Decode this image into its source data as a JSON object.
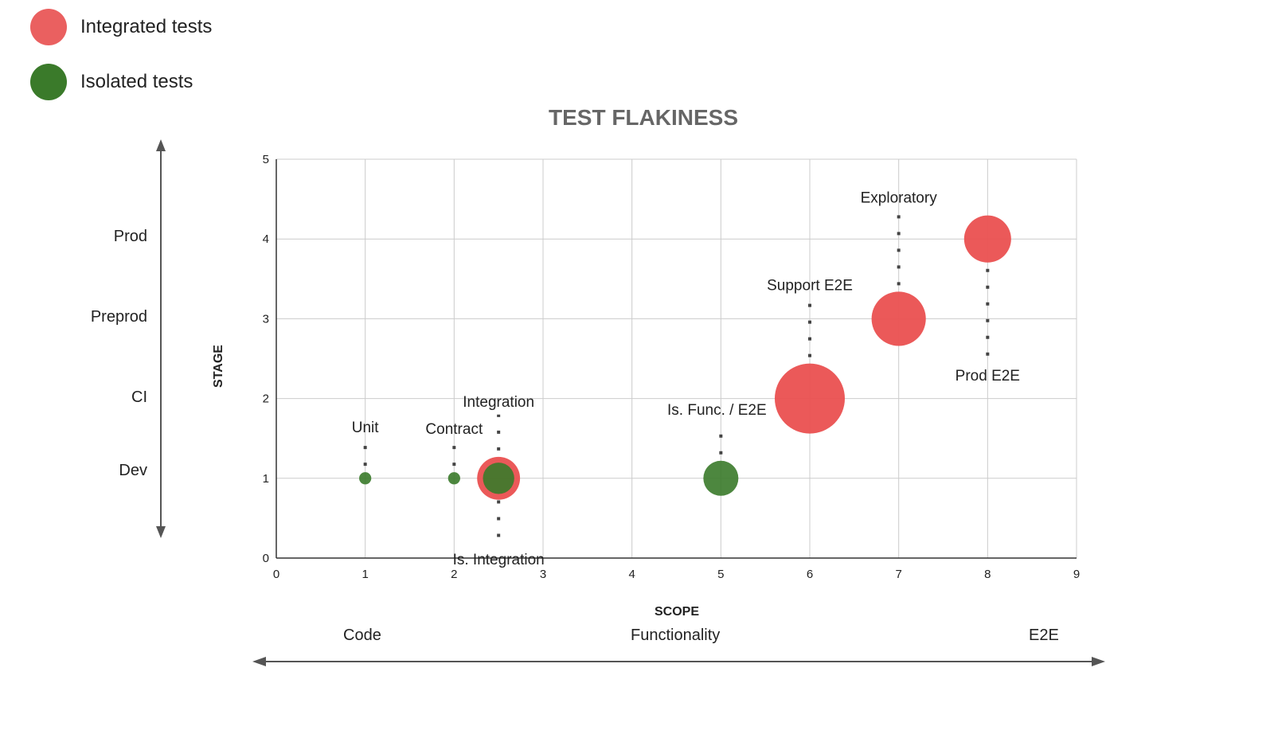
{
  "legend": [
    {
      "label": "Integrated tests",
      "color": "#ea6060"
    },
    {
      "label": "Isolated tests",
      "color": "#3a7a2a"
    }
  ],
  "stage_axis_labels": [
    "Prod",
    "Preprod",
    "CI",
    "Dev"
  ],
  "scope_axis_labels": [
    "Code",
    "Functionality",
    "E2E"
  ],
  "chart_data": {
    "type": "scatter",
    "title": "TEST FLAKINESS",
    "xlabel": "SCOPE",
    "ylabel": "STAGE",
    "xlim": [
      0,
      9
    ],
    "ylim": [
      0,
      5
    ],
    "xticks": [
      0,
      1,
      2,
      3,
      4,
      5,
      6,
      7,
      8,
      9
    ],
    "yticks": [
      0,
      1,
      2,
      3,
      4,
      5
    ],
    "grid": true,
    "bubble": true,
    "series": [
      {
        "name": "Integrated tests",
        "color": "#ea5050",
        "points": [
          {
            "label": "Integration",
            "x": 2.5,
            "y": 1,
            "size": 1.5
          },
          {
            "label": "Support E2E",
            "x": 6,
            "y": 2,
            "size": 4
          },
          {
            "label": "Exploratory",
            "x": 7,
            "y": 3,
            "size": 2.4
          },
          {
            "label": "Prod E2E",
            "x": 8,
            "y": 4,
            "size": 1.8
          }
        ]
      },
      {
        "name": "Isolated tests",
        "color": "#3a7a2a",
        "points": [
          {
            "label": "Unit",
            "x": 1,
            "y": 1,
            "size": 0.12
          },
          {
            "label": "Contract",
            "x": 2,
            "y": 1,
            "size": 0.12
          },
          {
            "label": "Is. Integration",
            "x": 2.5,
            "y": 1,
            "size": 0.8
          },
          {
            "label": "Is. Func. / E2E",
            "x": 5,
            "y": 1,
            "size": 1
          }
        ]
      }
    ]
  }
}
